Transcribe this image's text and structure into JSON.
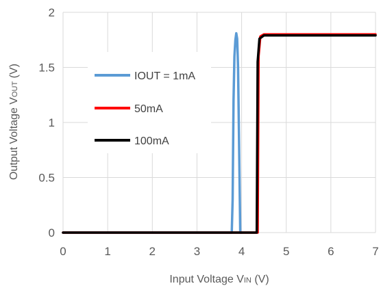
{
  "chart_data": {
    "type": "line",
    "xlabel": {
      "main": "Input Voltage V",
      "sub": "IN",
      "unit": " (V)"
    },
    "ylabel": {
      "main": "Output Voltage V",
      "sub": "OUT",
      "unit": " (V)"
    },
    "xlim": [
      0,
      7
    ],
    "ylim": [
      0,
      2
    ],
    "x_ticks": [
      0,
      1,
      2,
      3,
      4,
      5,
      6,
      7
    ],
    "y_ticks": [
      0,
      0.5,
      1,
      1.5,
      2
    ],
    "x_tick_labels": [
      "0",
      "1",
      "2",
      "3",
      "4",
      "5",
      "6",
      "7"
    ],
    "y_tick_labels": [
      "0",
      "0.5",
      "1",
      "1.5",
      "2"
    ],
    "grid": true,
    "legend_position": "left-inside",
    "series": [
      {
        "name": "IOUT = 1mA",
        "color": "#5b9bd5",
        "x": [
          0,
          3.78,
          3.8,
          3.82,
          3.84,
          3.86,
          3.88,
          3.9,
          3.92,
          3.94,
          3.97,
          4.0
        ],
        "y": [
          0,
          0,
          0.3,
          1.2,
          1.6,
          1.75,
          1.81,
          1.76,
          1.5,
          0.9,
          0,
          0
        ]
      },
      {
        "name": "50mA",
        "color": "#ff0000",
        "x": [
          0,
          4.36,
          4.38,
          4.42,
          4.5,
          5,
          6,
          7
        ],
        "y": [
          0,
          0,
          1.6,
          1.78,
          1.8,
          1.8,
          1.8,
          1.8
        ]
      },
      {
        "name": "100mA",
        "color": "#000000",
        "x": [
          0,
          4.34,
          4.36,
          4.4,
          4.5,
          5,
          6,
          7
        ],
        "y": [
          0,
          0,
          1.55,
          1.76,
          1.79,
          1.79,
          1.79,
          1.79
        ]
      }
    ]
  }
}
